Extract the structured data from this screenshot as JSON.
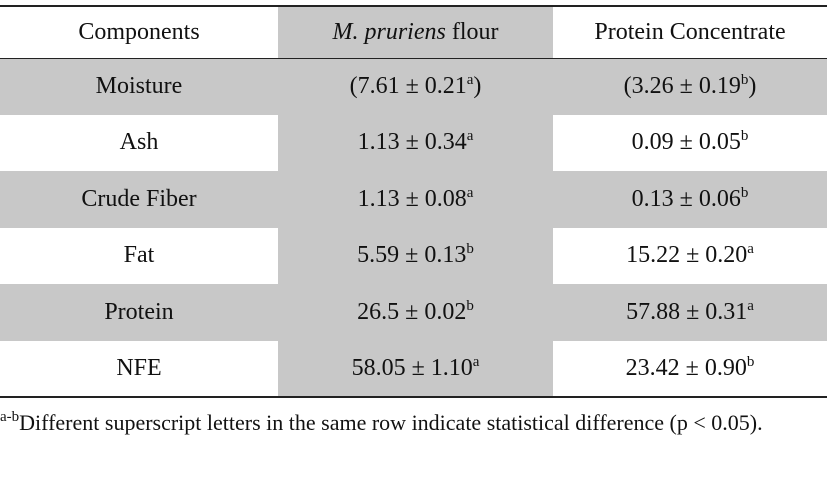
{
  "table": {
    "header": [
      {
        "text": "Components"
      },
      {
        "italic": "M. pruriens",
        "text": "flour"
      },
      {
        "text": "Protein Concentrate"
      }
    ],
    "rows": [
      [
        {
          "text": "Moisture"
        },
        {
          "main": "(7.61 ± 0.21",
          "sup": "a",
          "tail": ")"
        },
        {
          "main": "(3.26 ± 0.19",
          "sup": "b",
          "tail": ")"
        }
      ],
      [
        {
          "text": "Ash"
        },
        {
          "main": "1.13 ± 0.34",
          "sup": "a"
        },
        {
          "main": "0.09 ± 0.05",
          "sup": "b"
        }
      ],
      [
        {
          "text": "Crude Fiber"
        },
        {
          "main": "1.13 ± 0.08",
          "sup": "a"
        },
        {
          "main": "0.13 ± 0.06",
          "sup": "b"
        }
      ],
      [
        {
          "text": "Fat"
        },
        {
          "main": "5.59 ± 0.13",
          "sup": "b"
        },
        {
          "main": "15.22 ± 0.20",
          "sup": "a"
        }
      ],
      [
        {
          "text": "Protein"
        },
        {
          "main": "26.5 ± 0.02",
          "sup": "b"
        },
        {
          "main": "57.88 ± 0.31",
          "sup": "a"
        }
      ],
      [
        {
          "text": "NFE"
        },
        {
          "main": "58.05 ± 1.10",
          "sup": "a"
        },
        {
          "main": "23.42 ± 0.90",
          "sup": "b"
        }
      ]
    ]
  },
  "footnote": {
    "sup": "a-b",
    "text": "Different superscript letters in the same row indicate statistical difference (p < 0.05)."
  }
}
